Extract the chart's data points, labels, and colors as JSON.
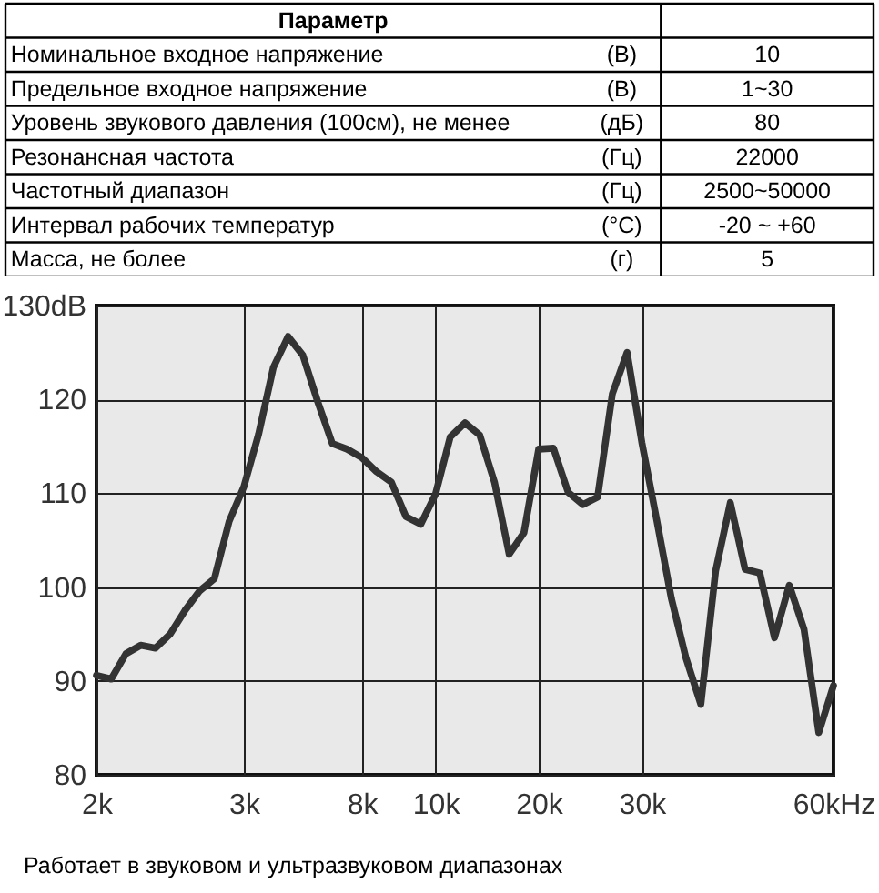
{
  "chart_data": [
    {
      "type": "other",
      "categories": [
        "Параметр",
        null,
        null
      ],
      "cell_labels": [
        [
          "Номинальное входное напряжение",
          "(В)",
          "10"
        ],
        [
          "Предельное входное напряжение",
          "(В)",
          "1~30"
        ],
        [
          "Уровень звукового давления (100см), не менее",
          "(дБ)",
          "80"
        ],
        [
          "Резонансная частота",
          "(Гц)",
          "22000"
        ],
        [
          "Частотный диапазон",
          "(Гц)",
          "2500~50000"
        ],
        [
          "Интервал рабочих температур",
          "(°С)",
          "-20 ~ +60"
        ],
        [
          "Масса, не более",
          "(г)",
          "5"
        ]
      ]
    },
    {
      "type": "line",
      "categories": [
        "2k",
        null,
        null,
        null,
        null,
        null,
        null,
        null,
        null,
        null,
        "3k",
        null,
        null,
        null,
        null,
        null,
        null,
        null,
        "8k",
        null,
        null,
        null,
        null,
        "10k",
        null,
        null,
        null,
        null,
        null,
        null,
        "20k",
        null,
        null,
        null,
        null,
        null,
        null,
        "30k",
        null,
        null,
        null,
        null,
        null,
        null,
        null,
        null,
        null,
        null,
        null,
        null,
        "60kHz"
      ],
      "series": [
        {
          "color": "#333333",
          "values": [
            90.6,
            90.2,
            92.9,
            93.8,
            93.5,
            95.0,
            97.5,
            99.6,
            100.9,
            107.0,
            110.7,
            116.3,
            123.4,
            126.7,
            124.7,
            119.8,
            115.3,
            114.7,
            113.8,
            112.3,
            111.2,
            107.5,
            106.7,
            109.9,
            116.0,
            117.5,
            116.2,
            111.2,
            103.5,
            105.8,
            114.7,
            114.8,
            110.1,
            108.8,
            109.6,
            120.6,
            125.0,
            115.4,
            107.2,
            98.8,
            92.4,
            87.5,
            101.7,
            109.0,
            101.9,
            101.5,
            94.6,
            100.2,
            95.5,
            84.5,
            89.5
          ]
        }
      ],
      "ylim": [
        80,
        130
      ],
      "yticks": [
        80,
        90,
        100,
        110,
        120,
        {
          "value": 130,
          "label": "130dB"
        }
      ],
      "grid": true,
      "line_style": "solid",
      "marker": "none",
      "annotations": [
        "Работает в звуковом и ультразвуковом диапазонах"
      ]
    }
  ]
}
